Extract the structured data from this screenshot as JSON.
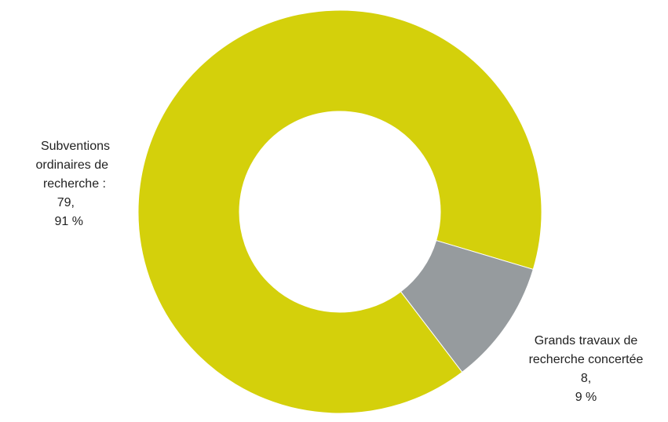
{
  "chart_data": {
    "type": "pie",
    "variant": "donut",
    "title": "",
    "slices": [
      {
        "label_lines": [
          "Subventions",
          "ordinaires de",
          "recherche :",
          "79,",
          "91 %"
        ],
        "value": 79.91,
        "color": "#d4d00b"
      },
      {
        "label_lines": [
          "Grands travaux de",
          "recherche concertée",
          "8,",
          "9 %"
        ],
        "value": 8.9,
        "color": "#969b9e"
      }
    ],
    "legend": "none"
  }
}
